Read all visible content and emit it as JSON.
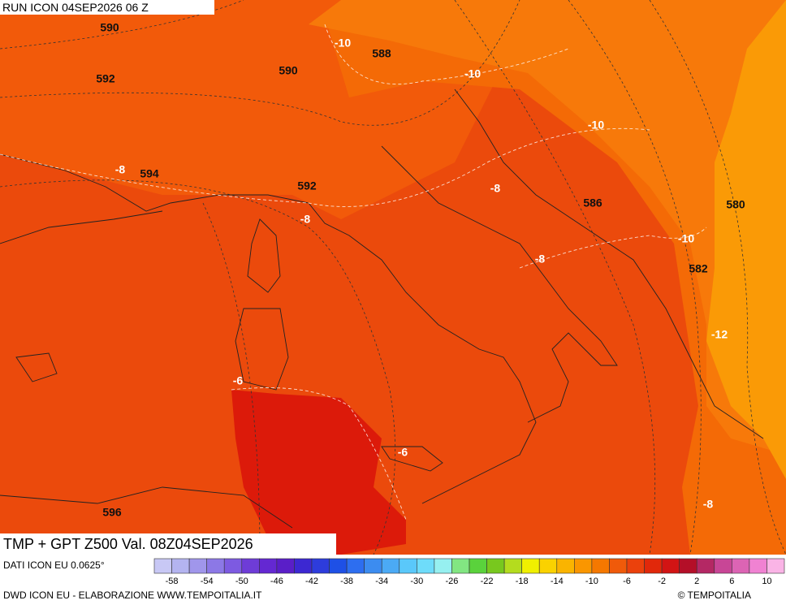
{
  "header": {
    "run": "RUN ICON 04SEP2026 06 Z"
  },
  "map": {
    "labels": [
      "590",
      "592",
      "590",
      "588",
      "-10",
      "-10",
      "-10",
      "-8",
      "594",
      "592",
      "-8",
      "-8",
      "586",
      "580",
      "-10",
      "-8",
      "582",
      "-12",
      "-6",
      "-6",
      "596",
      "-8"
    ]
  },
  "footer": {
    "title": "TMP + GPT Z500 Val. 08Z04SEP2026",
    "source": "DATI ICON EU 0.0625°",
    "credit": "DWD ICON EU - ELABORAZIONE WWW.TEMPOITALIA.IT",
    "copyright": "© TEMPOITALIA"
  },
  "colorbar": {
    "ticks": [
      -58,
      -54,
      -50,
      -46,
      -42,
      -38,
      -34,
      -30,
      -26,
      -22,
      -18,
      -14,
      -10,
      -6,
      -2,
      2,
      6,
      10
    ],
    "colors": [
      "#c8c8f5",
      "#b4b4f0",
      "#a096eb",
      "#8c78e6",
      "#7d5ae1",
      "#6e3cd7",
      "#6428d2",
      "#5a1ec8",
      "#3c28d2",
      "#2d3cdc",
      "#1e50e6",
      "#2d6ef0",
      "#3c8cf0",
      "#4baaf5",
      "#5ac8fa",
      "#6edcfa",
      "#96f0f0",
      "#82e682",
      "#5ad23c",
      "#78c81e",
      "#b4dc1e",
      "#f0f000",
      "#fad200",
      "#fab400",
      "#fa9600",
      "#f57800",
      "#f05a0a",
      "#eb410c",
      "#e1280a",
      "#d21414",
      "#b40f28",
      "#b42864",
      "#c84696",
      "#dc64b4",
      "#f082d2",
      "#fab4e6"
    ]
  }
}
